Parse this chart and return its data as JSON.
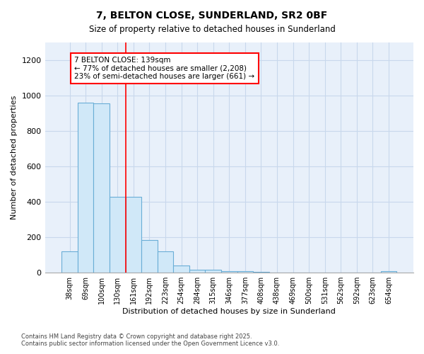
{
  "title1": "7, BELTON CLOSE, SUNDERLAND, SR2 0BF",
  "title2": "Size of property relative to detached houses in Sunderland",
  "xlabel": "Distribution of detached houses by size in Sunderland",
  "ylabel": "Number of detached properties",
  "categories": [
    "38sqm",
    "69sqm",
    "100sqm",
    "130sqm",
    "161sqm",
    "192sqm",
    "223sqm",
    "254sqm",
    "284sqm",
    "315sqm",
    "346sqm",
    "377sqm",
    "408sqm",
    "438sqm",
    "469sqm",
    "500sqm",
    "531sqm",
    "562sqm",
    "592sqm",
    "623sqm",
    "654sqm"
  ],
  "values": [
    120,
    960,
    955,
    430,
    430,
    185,
    120,
    40,
    18,
    18,
    10,
    10,
    5,
    0,
    0,
    0,
    0,
    0,
    0,
    0,
    8
  ],
  "bar_color": "#d0e8f8",
  "bar_edge_color": "#6aaed6",
  "grid_color": "#c8d8ec",
  "plot_bg_color": "#e8f0fa",
  "fig_bg_color": "#ffffff",
  "red_line_x": 3.0,
  "annotation_text": "7 BELTON CLOSE: 139sqm\n← 77% of detached houses are smaller (2,208)\n23% of semi-detached houses are larger (661) →",
  "ylim": [
    0,
    1300
  ],
  "yticks": [
    0,
    200,
    400,
    600,
    800,
    1000,
    1200
  ],
  "footer1": "Contains HM Land Registry data © Crown copyright and database right 2025.",
  "footer2": "Contains public sector information licensed under the Open Government Licence v3.0."
}
